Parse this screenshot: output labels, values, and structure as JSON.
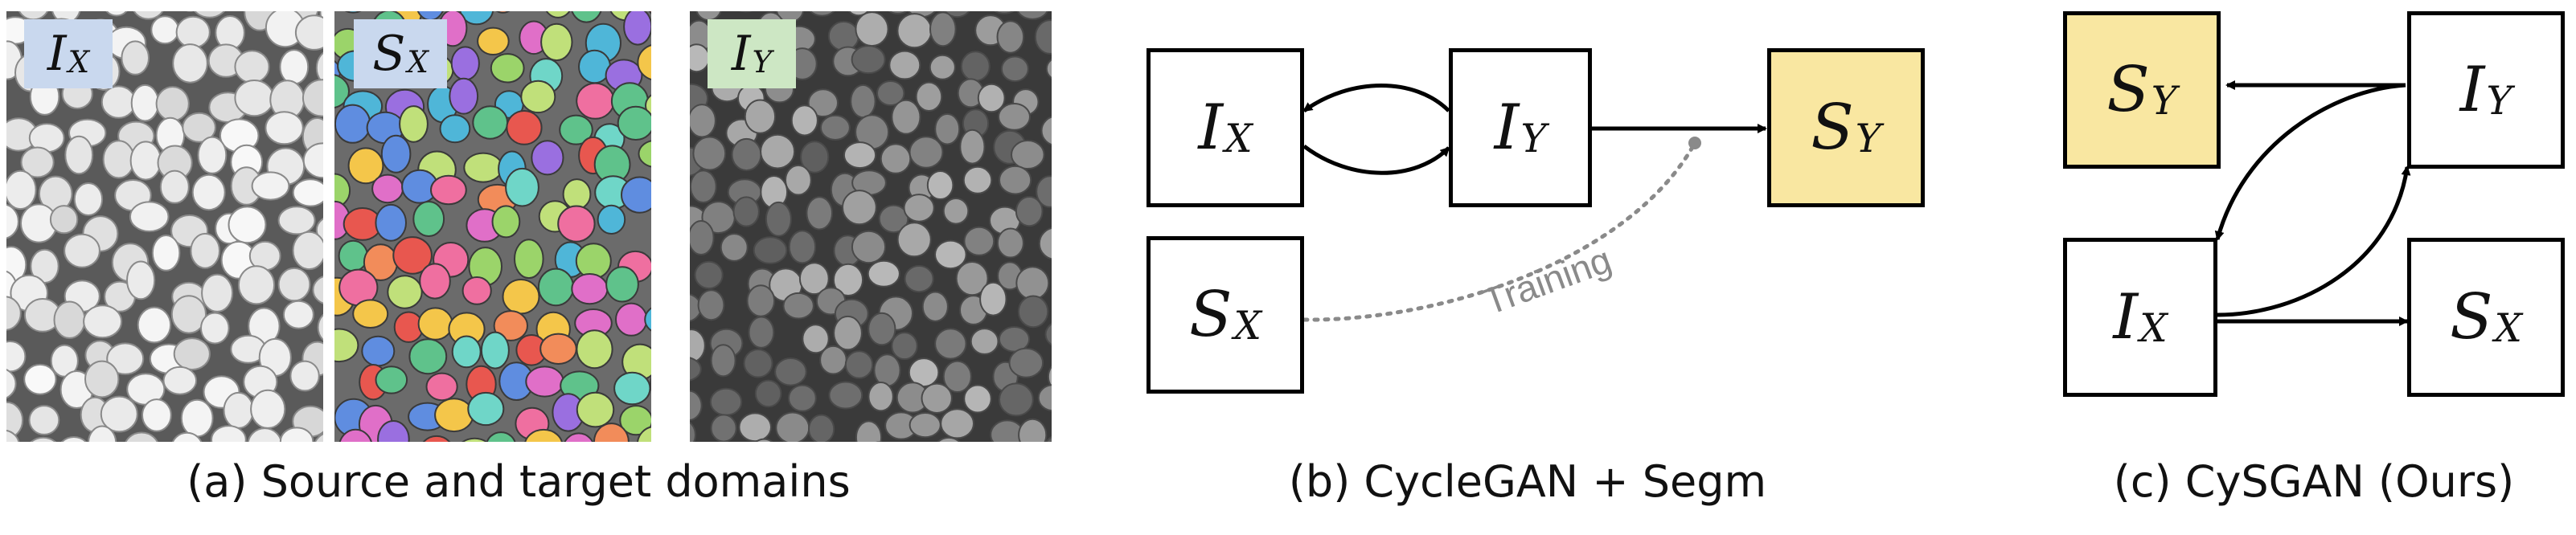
{
  "panel_a": {
    "images": [
      {
        "label_main": "I",
        "label_sub": "X",
        "label_color": "#c9d8ee",
        "icon": "grayscale-membrane-image"
      },
      {
        "label_main": "S",
        "label_sub": "X",
        "label_color": "#c9d8ee",
        "icon": "colored-segmentation-image"
      },
      {
        "label_main": "I",
        "label_sub": "Y",
        "label_color": "#cde7c4",
        "icon": "fluorescence-nuclei-image"
      }
    ],
    "caption": "(a) Source and target domains"
  },
  "panel_b": {
    "nodes": {
      "ix": {
        "main": "I",
        "sub": "X"
      },
      "iy": {
        "main": "I",
        "sub": "Y"
      },
      "sy": {
        "main": "S",
        "sub": "Y"
      },
      "sx": {
        "main": "S",
        "sub": "X"
      }
    },
    "training_label": "Training",
    "caption": "(b) CycleGAN + Segm"
  },
  "panel_c": {
    "nodes": {
      "sy": {
        "main": "S",
        "sub": "Y"
      },
      "iy": {
        "main": "I",
        "sub": "Y"
      },
      "ix": {
        "main": "I",
        "sub": "X"
      },
      "sx": {
        "main": "S",
        "sub": "X"
      }
    },
    "caption": "(c) CySGAN (Ours)"
  },
  "colors": {
    "highlight_yellow": "#f9e7a1",
    "source_label_blue": "#c9d8ee",
    "target_label_green": "#cde7c4",
    "training_gray": "#8a8a8a"
  }
}
